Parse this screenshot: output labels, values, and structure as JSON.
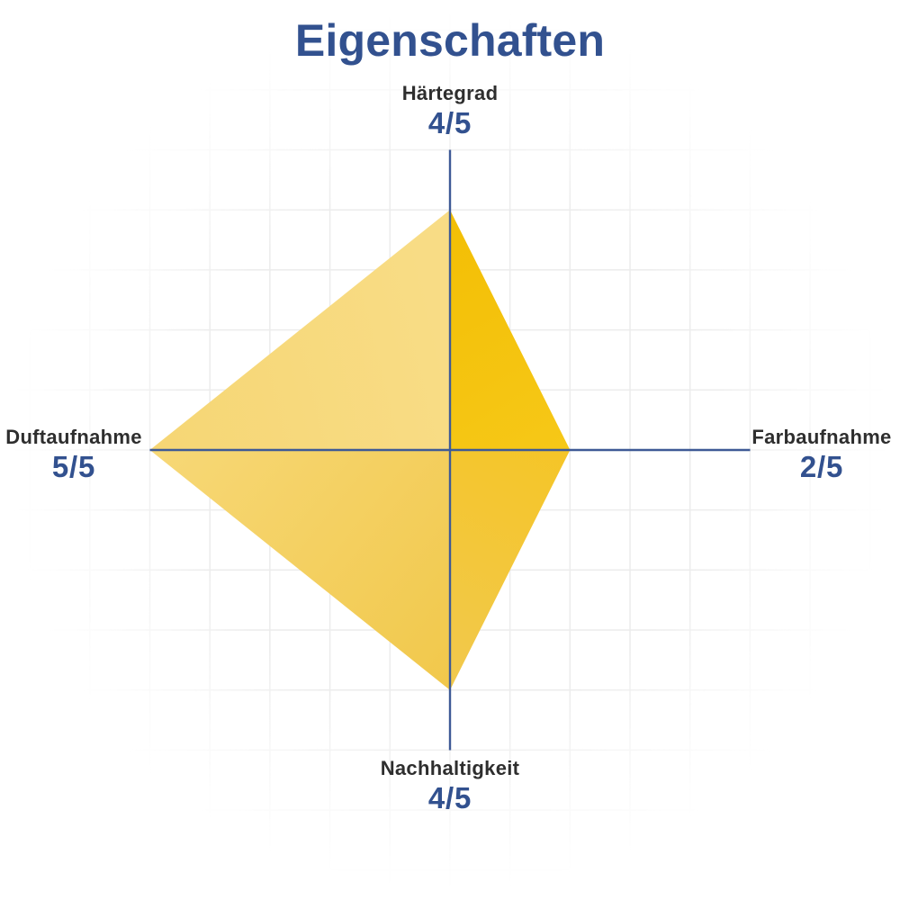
{
  "title": "Eigenschaften",
  "chart_data": {
    "type": "radar",
    "title": "Eigenschaften",
    "scale_min": 0,
    "scale_max": 5,
    "grid": true,
    "legend": false,
    "axes": [
      {
        "id": "top",
        "direction": "up",
        "label": "Härtegrad",
        "value": 4,
        "max": 5,
        "display": "4/5"
      },
      {
        "id": "right",
        "direction": "right",
        "label": "Farbaufnahme",
        "value": 2,
        "max": 5,
        "display": "2/5"
      },
      {
        "id": "bottom",
        "direction": "down",
        "label": "Nachhaltigkeit",
        "value": 4,
        "max": 5,
        "display": "4/5"
      },
      {
        "id": "left",
        "direction": "left",
        "label": "Duftaufnahme",
        "value": 5,
        "max": 5,
        "display": "5/5"
      }
    ],
    "colors": {
      "title_text": "#32518F",
      "value_text": "#32518F",
      "label_text": "#2E2E2E",
      "axis_line": "#3E5A96",
      "grid_line": "#ECECEC",
      "quadrants": {
        "top_right": {
          "from": "#F3BF05",
          "to": "#F6C818"
        },
        "bottom_right": {
          "from": "#F5C527",
          "to": "#F1C94E"
        },
        "bottom_left": {
          "from": "#F1C84B",
          "to": "#F7D877"
        },
        "top_left": {
          "from": "#F8DC85",
          "to": "#F6D674"
        }
      }
    }
  }
}
